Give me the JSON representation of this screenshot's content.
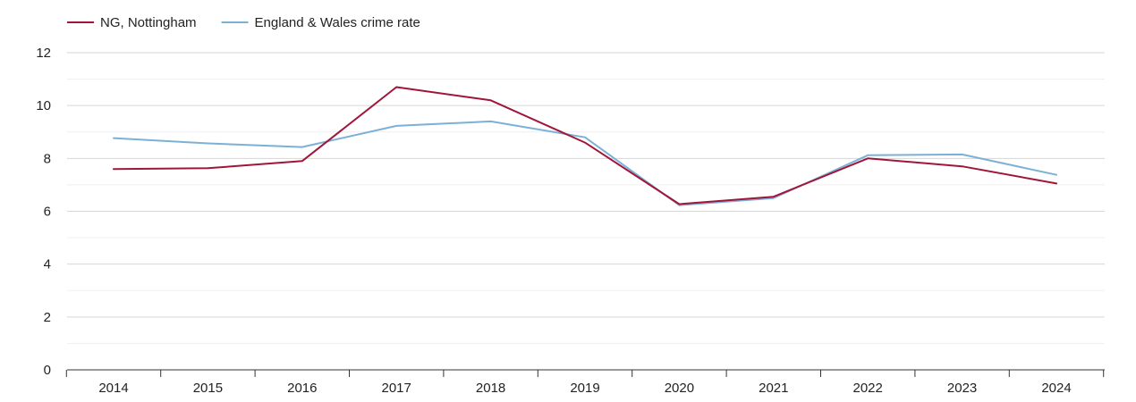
{
  "chart_data": {
    "type": "line",
    "title": "",
    "xlabel": "",
    "ylabel": "",
    "x": [
      "2014",
      "2015",
      "2016",
      "2017",
      "2018",
      "2019",
      "2020",
      "2021",
      "2022",
      "2023",
      "2024"
    ],
    "ylim": [
      0,
      12
    ],
    "yticks": [
      0,
      2,
      4,
      6,
      8,
      10,
      12
    ],
    "grid": true,
    "legend_position": "top-left",
    "series": [
      {
        "name": "NG, Nottingham",
        "color": "#a0163a",
        "values": [
          7.6,
          7.63,
          7.9,
          10.7,
          10.2,
          8.6,
          6.27,
          6.55,
          8.0,
          7.7,
          7.05
        ]
      },
      {
        "name": "England & Wales crime rate",
        "color": "#7cb1d6",
        "values": [
          8.77,
          8.57,
          8.43,
          9.23,
          9.4,
          8.8,
          6.23,
          6.5,
          8.12,
          8.15,
          7.38
        ]
      }
    ]
  }
}
